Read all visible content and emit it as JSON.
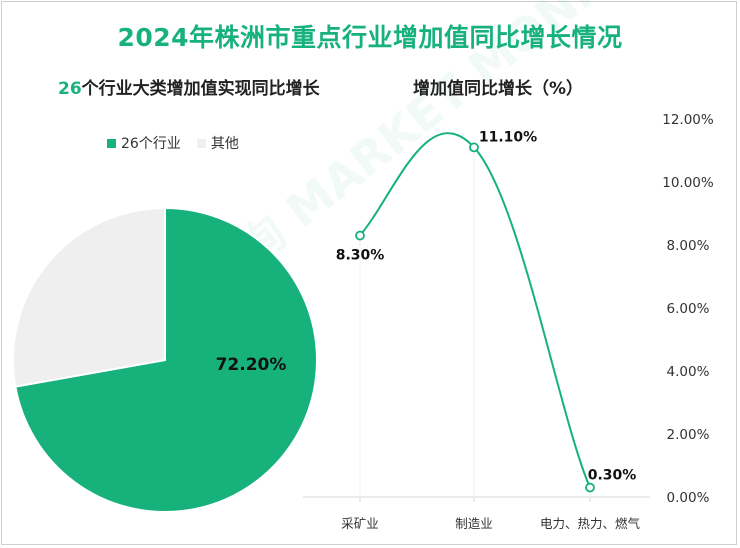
{
  "title": "2024年株洲市重点行业增加值同比增长情况",
  "left_panel": {
    "subtitle_num": "26",
    "subtitle_text": "个行业大类增加值实现同比增长",
    "legend": [
      "26个行业",
      "其他"
    ]
  },
  "right_panel": {
    "subtitle": "增加值同比增长（%）"
  },
  "colors": {
    "accent": "#17b27c",
    "other": "#efefef",
    "text": "#222222"
  },
  "watermark": "贝哲斯咨询 MARKET MONITOR",
  "chart_data": [
    {
      "type": "pie",
      "labels": [
        "26个行业",
        "其他"
      ],
      "values": [
        72.2,
        27.8
      ],
      "data_labels": [
        "72.20%",
        ""
      ],
      "legend_position": "top"
    },
    {
      "type": "line",
      "categories": [
        "采矿业",
        "制造业",
        "电力、热力、燃气"
      ],
      "values": [
        8.3,
        11.1,
        0.3
      ],
      "data_labels": [
        "8.30%",
        "11.10%",
        "0.30%"
      ],
      "y_tick_labels": [
        "0.00%",
        "2.00%",
        "4.00%",
        "6.00%",
        "8.00%",
        "10.00%",
        "12.00%"
      ],
      "ylim": [
        0,
        12
      ],
      "smooth": true,
      "grid": false
    }
  ]
}
